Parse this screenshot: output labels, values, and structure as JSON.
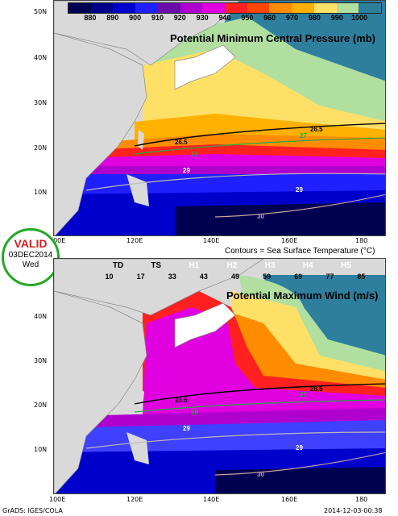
{
  "top_panel": {
    "title": "Potential Minimum Central Pressure (mb)",
    "colorbar_labels": [
      "880",
      "890",
      "900",
      "910",
      "920",
      "930",
      "940",
      "950",
      "960",
      "970",
      "980",
      "990",
      "1000"
    ],
    "colorbar_colors": [
      "#000050",
      "#00008b",
      "#0000cd",
      "#2020ff",
      "#6a0dad",
      "#b000d0",
      "#e000e0",
      "#ff2020",
      "#ff4500",
      "#ff8c00",
      "#ffb000",
      "#ffe066",
      "#b0dfa0",
      "#2e7f9e"
    ],
    "lat_ticks": [
      "50N",
      "40N",
      "30N",
      "20N",
      "10N"
    ],
    "lon_ticks": [
      "100E",
      "120E",
      "140E",
      "160E",
      "180"
    ],
    "contour_labels": [
      "26.5",
      "26.5",
      "27",
      "28",
      "29",
      "29",
      "30"
    ]
  },
  "contours_note": "Contours = Sea Surface Temperature (°C)",
  "valid_stamp": {
    "label": "VALID",
    "date": "03DEC2014",
    "day": "Wed"
  },
  "bottom_panel": {
    "title": "Potential Maximum Wind (m/s)",
    "category_labels": [
      "TD",
      "TS",
      "H1",
      "H2",
      "H3",
      "H4",
      "H5"
    ],
    "colorbar_labels": [
      "10",
      "17",
      "33",
      "43",
      "49",
      "59",
      "69",
      "77",
      "85"
    ],
    "colorbar_colors": [
      "#2e7f9e",
      "#b0dfa0",
      "#ffe066",
      "#ff8c00",
      "#ff2020",
      "#e000e0",
      "#b000d0",
      "#4040ff",
      "#0000cd",
      "#000050"
    ],
    "lat_ticks": [
      "40N",
      "30N",
      "20N",
      "10N"
    ],
    "lon_ticks": [
      "100E",
      "120E",
      "140E",
      "160E",
      "180"
    ],
    "contour_labels": [
      "26.5",
      "26.5",
      "27",
      "28",
      "29",
      "29",
      "30"
    ]
  },
  "footer": {
    "left": "GrADS: IGES/COLA",
    "right": "2014-12-03-00:38"
  }
}
